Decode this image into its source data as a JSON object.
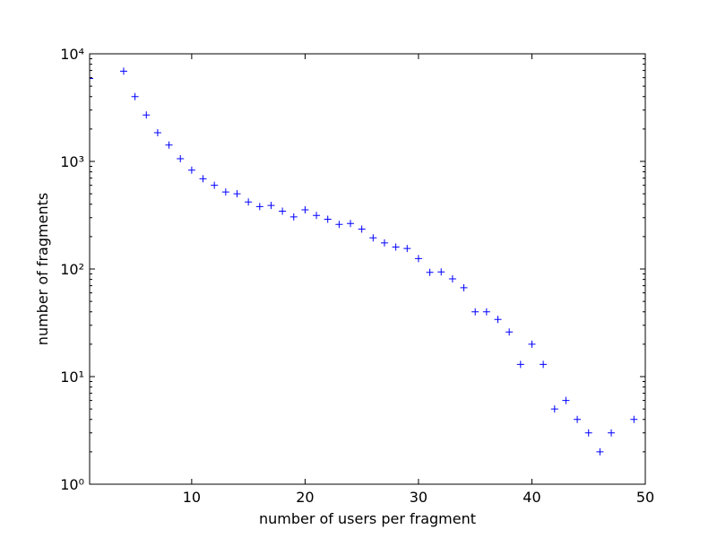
{
  "chart_data": {
    "type": "scatter",
    "xlabel": "number of users per fragment",
    "ylabel": "number of fragments",
    "color": "#0000ff",
    "x": [
      1,
      4,
      5,
      6,
      7,
      8,
      9,
      10,
      11,
      12,
      13,
      14,
      15,
      16,
      17,
      18,
      19,
      20,
      21,
      22,
      23,
      24,
      25,
      26,
      27,
      28,
      29,
      30,
      31,
      32,
      33,
      34,
      35,
      36,
      37,
      38,
      39,
      40,
      41,
      42,
      43,
      44,
      45,
      46,
      47,
      49
    ],
    "values": [
      5900,
      6900,
      4000,
      2700,
      1850,
      1420,
      1060,
      830,
      690,
      600,
      520,
      500,
      420,
      380,
      390,
      345,
      305,
      355,
      315,
      290,
      260,
      265,
      235,
      195,
      175,
      160,
      155,
      125,
      93,
      94,
      81,
      67,
      40,
      40,
      34,
      26,
      13,
      20,
      13,
      5,
      6,
      4,
      3,
      2,
      3,
      4
    ],
    "xlim": [
      1,
      50
    ],
    "xticks": [
      10,
      20,
      30,
      40,
      50
    ],
    "ylim": [
      1,
      10000
    ],
    "yscale": "log",
    "yticks": [
      {
        "value": 1,
        "label": "10⁰"
      },
      {
        "value": 10,
        "label": "10¹"
      },
      {
        "value": 100,
        "label": "10²"
      },
      {
        "value": 1000,
        "label": "10³"
      },
      {
        "value": 10000,
        "label": "10⁴"
      }
    ]
  }
}
